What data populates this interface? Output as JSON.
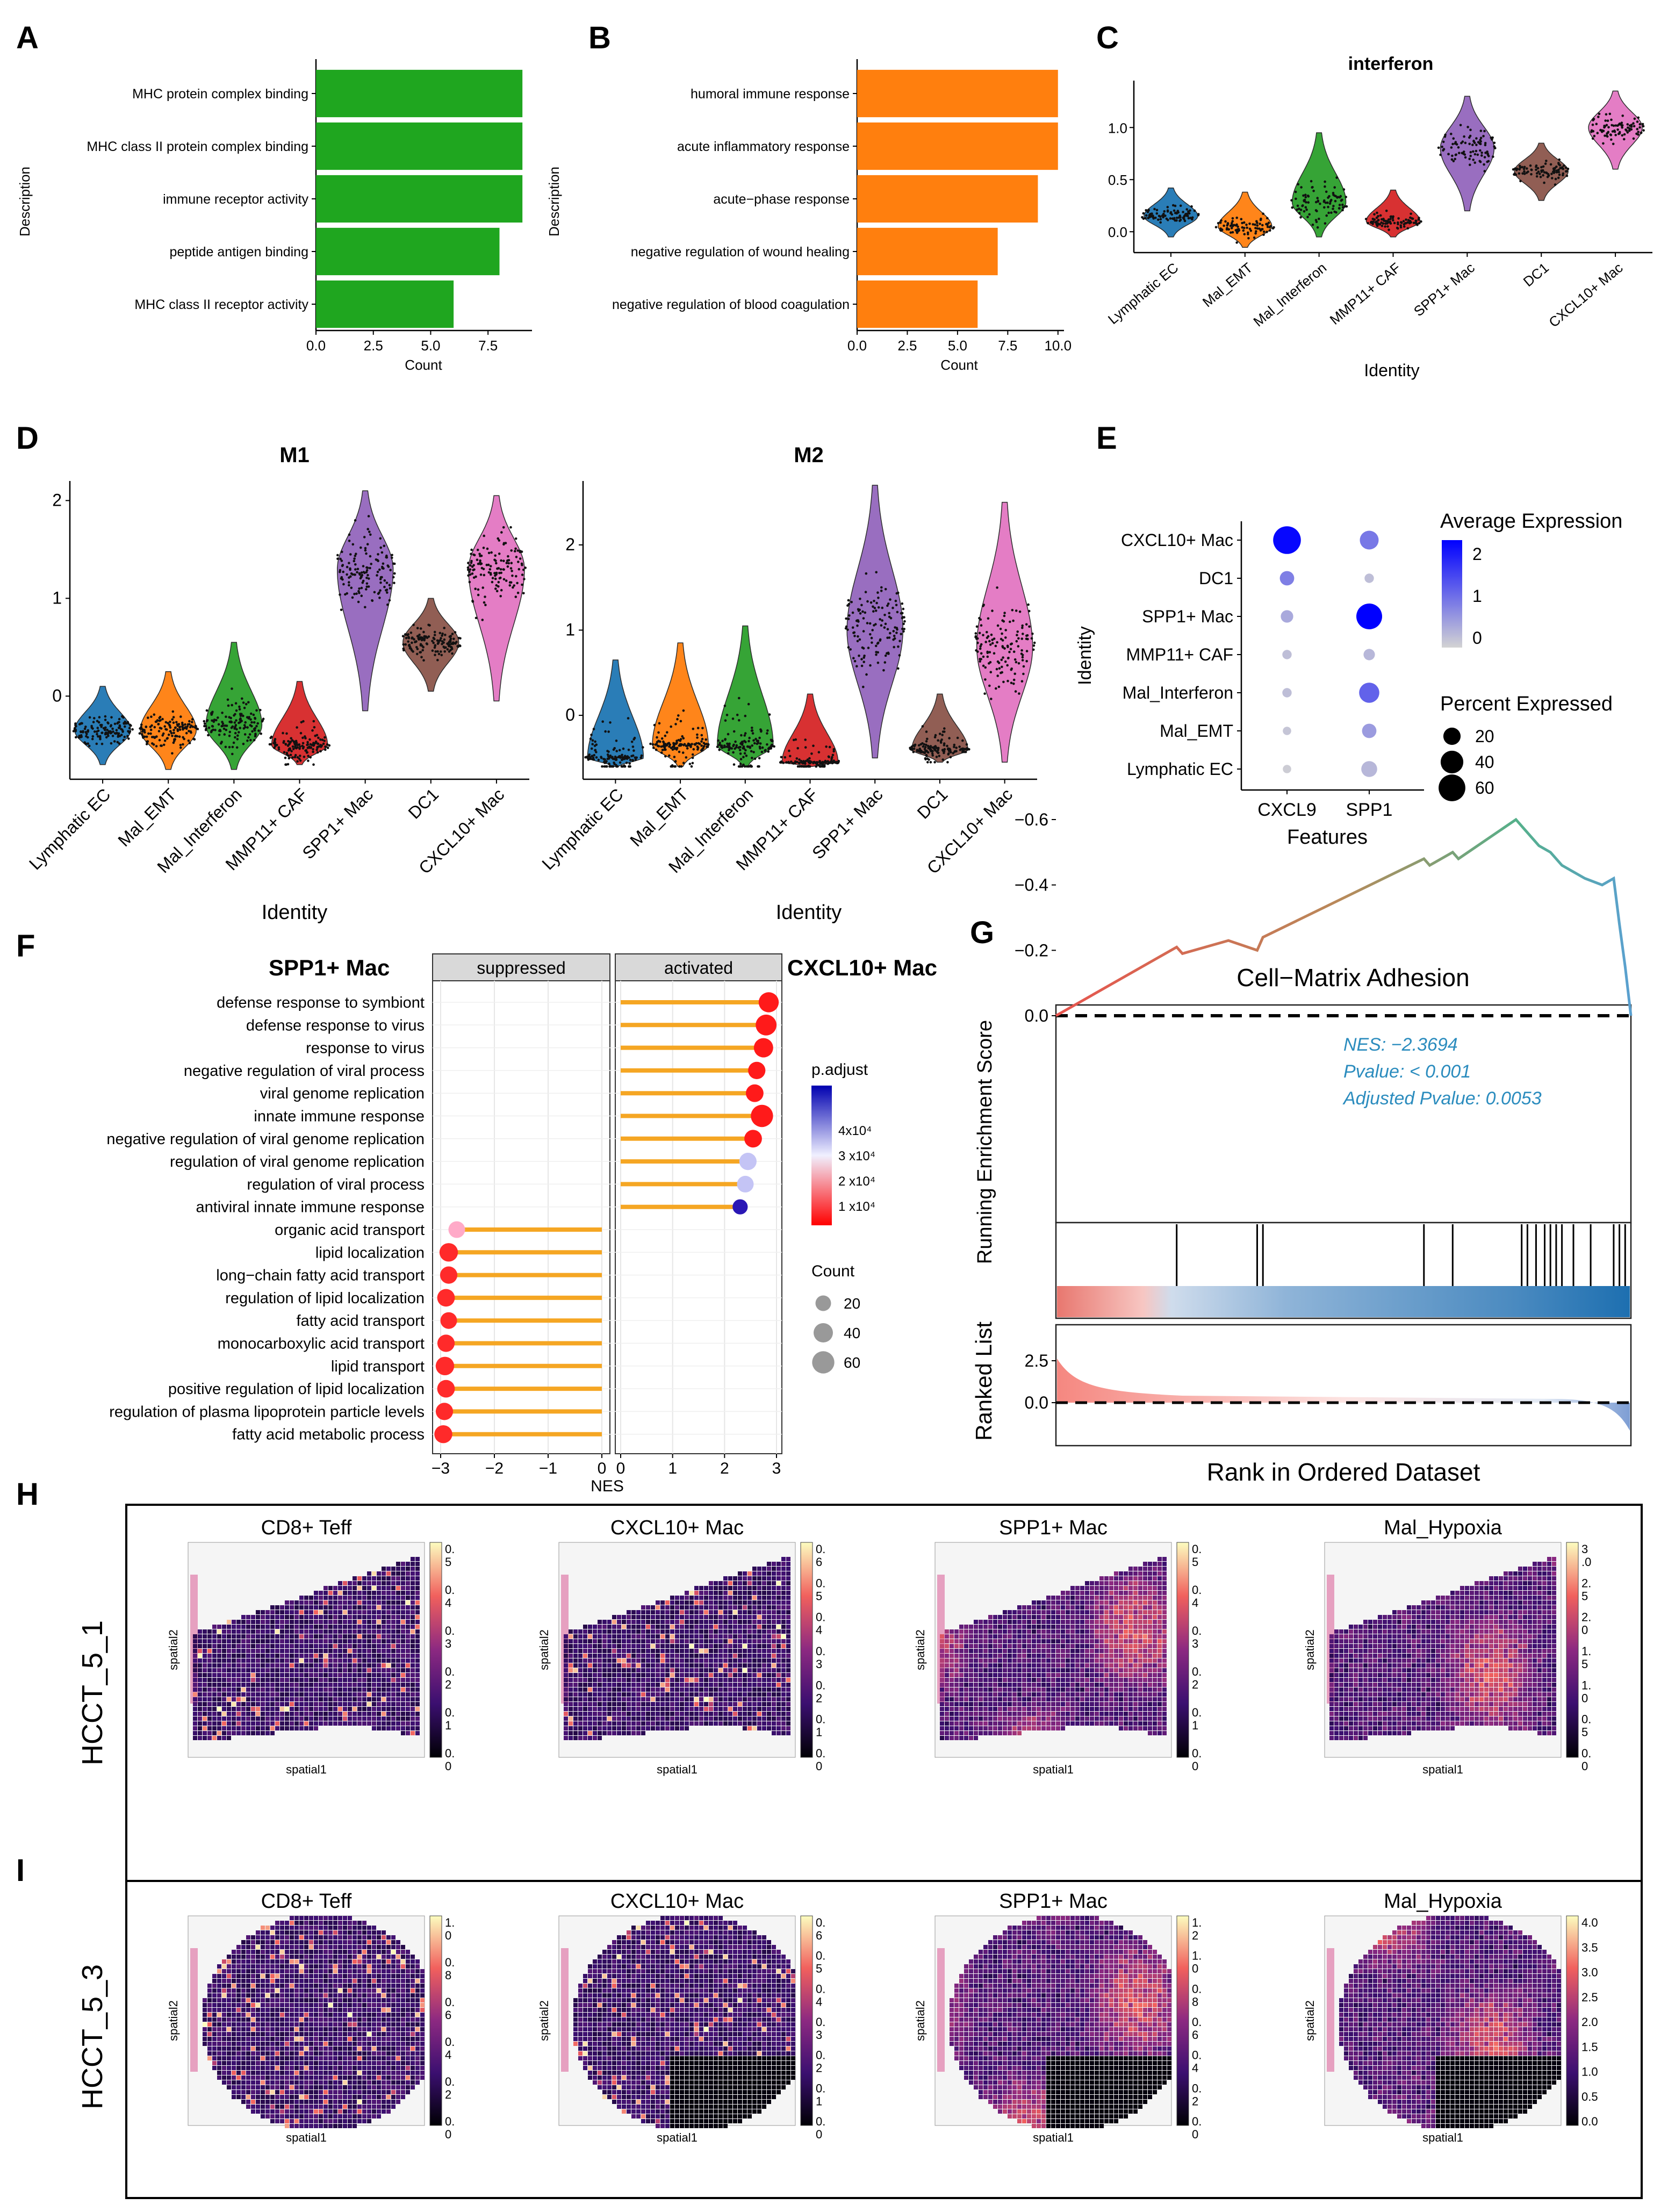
{
  "colors": {
    "green": "#1fa61f",
    "orange": "#ff7f0e",
    "yellow_bar": "#f5a623",
    "cell_colors": [
      "#1f77b4",
      "#ff7f0e",
      "#2ca02c",
      "#d62728",
      "#9467bd",
      "#8c564b",
      "#e377c2"
    ]
  },
  "panels": {
    "A": "A",
    "B": "B",
    "C": "C",
    "D": "D",
    "E": "E",
    "F": "F",
    "G": "G",
    "H": "H",
    "I": "I"
  },
  "chart_data": [
    {
      "id": "A",
      "type": "bar",
      "categories": [
        "MHC protein complex binding",
        "MHC class II protein complex binding",
        "immune receptor activity",
        "peptide antigen binding",
        "MHC class II receptor activity"
      ],
      "values": [
        9,
        9,
        9,
        8,
        6
      ],
      "xlabel": "Count",
      "ylabel": "Description",
      "ticks": [
        0,
        2.5,
        5,
        7.5
      ],
      "tick_labels": [
        "0.0",
        "2.5",
        "5.0",
        "7.5"
      ],
      "xlim": [
        0,
        9.3
      ]
    },
    {
      "id": "B",
      "type": "bar",
      "categories": [
        "humoral immune response",
        "acute inflammatory response",
        "acute−phase response",
        "negative regulation of wound healing",
        "negative regulation of blood coagulation"
      ],
      "values": [
        10,
        10,
        9,
        7,
        6
      ],
      "xlabel": "Count",
      "ylabel": "Description",
      "ticks": [
        0,
        2.5,
        5,
        7.5,
        10
      ],
      "tick_labels": [
        "0.0",
        "2.5",
        "5.0",
        "7.5",
        "10.0"
      ],
      "xlim": [
        0,
        10.3
      ]
    },
    {
      "id": "C",
      "type": "violin",
      "title": "interferon",
      "categories": [
        "Lymphatic EC",
        "Mal_EMT",
        "Mal_Interferon",
        "MMP11+ CAF",
        "SPP1+ Mac",
        "DC1",
        "CXCL10+ Mac"
      ],
      "medians": [
        0.15,
        0.05,
        0.28,
        0.1,
        0.8,
        0.58,
        1.0
      ],
      "mins": [
        -0.05,
        -0.15,
        -0.05,
        -0.05,
        0.2,
        0.3,
        0.6
      ],
      "maxs": [
        0.42,
        0.38,
        0.95,
        0.4,
        1.3,
        0.85,
        1.35
      ],
      "xlabel": "Identity",
      "ylim": [
        -0.2,
        1.45
      ],
      "ticks": [
        0,
        0.5,
        1
      ],
      "tick_labels": [
        "0.0",
        "0.5",
        "1.0"
      ]
    },
    {
      "id": "D1",
      "type": "violin",
      "title": "M1",
      "categories": [
        "Lymphatic EC",
        "Mal_EMT",
        "Mal_Interferon",
        "MMP11+ CAF",
        "SPP1+ Mac",
        "DC1",
        "CXCL10+ Mac"
      ],
      "medians": [
        -0.35,
        -0.35,
        -0.3,
        -0.5,
        1.3,
        0.55,
        1.3
      ],
      "mins": [
        -0.7,
        -0.75,
        -0.75,
        -0.7,
        -0.15,
        0.05,
        -0.05
      ],
      "maxs": [
        0.1,
        0.25,
        0.55,
        0.15,
        2.1,
        1.0,
        2.05
      ],
      "xlabel": "Identity",
      "ylim": [
        -0.85,
        2.2
      ],
      "ticks": [
        0,
        1,
        2
      ],
      "tick_labels": [
        "0",
        "1",
        "2"
      ]
    },
    {
      "id": "D2",
      "type": "violin",
      "title": "M2",
      "categories": [
        "Lymphatic EC",
        "Mal_EMT",
        "Mal_Interferon",
        "MMP11+ CAF",
        "SPP1+ Mac",
        "DC1",
        "CXCL10+ Mac"
      ],
      "medians": [
        -0.5,
        -0.35,
        -0.35,
        -0.55,
        1.0,
        -0.4,
        0.8
      ],
      "mins": [
        -0.6,
        -0.6,
        -0.6,
        -0.6,
        -0.5,
        -0.55,
        -0.55
      ],
      "maxs": [
        0.65,
        0.85,
        1.05,
        0.25,
        2.7,
        0.25,
        2.5
      ],
      "xlabel": "Identity",
      "ylim": [
        -0.75,
        2.75
      ],
      "ticks": [
        0,
        1,
        2
      ],
      "tick_labels": [
        "0",
        "1",
        "2"
      ]
    },
    {
      "id": "E",
      "type": "dotplot",
      "features": [
        "CXCL9",
        "SPP1"
      ],
      "identities": [
        "CXCL10+ Mac",
        "DC1",
        "SPP1+ Mac",
        "MMP11+ CAF",
        "Mal_Interferon",
        "Mal_EMT",
        "Lymphatic EC"
      ],
      "avg_exp": [
        [
          2.2,
          0.6
        ],
        [
          0.5,
          -0.4
        ],
        [
          -0.1,
          2.3
        ],
        [
          -0.4,
          -0.3
        ],
        [
          -0.4,
          0.9
        ],
        [
          -0.5,
          0.1
        ],
        [
          -0.6,
          -0.3
        ]
      ],
      "pct_exp": [
        [
          65,
          25
        ],
        [
          12,
          3
        ],
        [
          8,
          55
        ],
        [
          3,
          6
        ],
        [
          3,
          30
        ],
        [
          2,
          12
        ],
        [
          2,
          16
        ]
      ],
      "xlabel": "Features",
      "ylabel": "Identity",
      "legend_color_title": "Average Expression",
      "legend_color_ticks": [
        "2",
        "1",
        "0"
      ],
      "legend_size_title": "Percent Expressed",
      "legend_size_ticks": [
        "20",
        "40",
        "60"
      ]
    },
    {
      "id": "F",
      "type": "lollipop",
      "left_title": "SPP1+ Mac",
      "right_title": "CXCL10+ Mac",
      "facet_labels": [
        "suppressed",
        "activated"
      ],
      "terms": [
        "defense response to symbiont",
        "defense response to virus",
        "response to virus",
        "negative regulation of viral process",
        "viral genome replication",
        "innate immune response",
        "negative regulation of viral genome replication",
        "regulation of viral genome replication",
        "regulation of viral process",
        "antiviral innate immune response",
        "organic acid transport",
        "lipid localization",
        "long−chain fatty acid transport",
        "regulation of lipid localization",
        "fatty acid transport",
        "monocarboxylic acid transport",
        "lipid transport",
        "positive regulation of lipid localization",
        "regulation of plasma lipoprotein particle levels",
        "fatty acid metabolic process"
      ],
      "nes": [
        2.85,
        2.8,
        2.75,
        2.62,
        2.58,
        2.72,
        2.55,
        2.45,
        2.4,
        2.3,
        -2.7,
        -2.85,
        -2.85,
        -2.9,
        -2.85,
        -2.9,
        -2.92,
        -2.9,
        -2.93,
        -2.95
      ],
      "count": [
        45,
        50,
        40,
        28,
        30,
        60,
        30,
        28,
        25,
        18,
        25,
        35,
        28,
        30,
        25,
        28,
        35,
        30,
        28,
        32
      ],
      "padj_color": [
        "#ff1a1a",
        "#ff1a1a",
        "#ff1a1a",
        "#ff1a1a",
        "#ff1a1a",
        "#ff1a1a",
        "#ff1a1a",
        "#c4c4f5",
        "#c4c4f5",
        "#2a17b5",
        "#ffaac8",
        "#ff2a2a",
        "#ff2a2a",
        "#ff2a2a",
        "#ff2a2a",
        "#ff2a2a",
        "#ff2a2a",
        "#ff2a2a",
        "#ff2a2a",
        "#ff2a2a"
      ],
      "xlabel": "NES",
      "left_ticks": [
        "−3",
        "−2",
        "−1",
        "0"
      ],
      "right_ticks": [
        "0",
        "1",
        "2",
        "3"
      ],
      "legend_padj_title": "p.adjust",
      "legend_padj_ticks": [
        "4x10⁴",
        "3 x10⁴",
        "2 x10⁴",
        "1 x10⁴"
      ],
      "legend_count_title": "Count",
      "legend_count_ticks": [
        "20",
        "40",
        "60"
      ]
    },
    {
      "id": "G",
      "type": "gsea",
      "title": "Cell−Matrix Adhesion",
      "nes_text": "NES: −2.3694",
      "pvalue_text": "Pvalue: < 0.001",
      "adj_pvalue_text": "Adjusted Pvalue: 0.0053",
      "ylabel_top": "Running Enrichment Score",
      "ylabel_bottom": "Ranked List",
      "xlabel": "Rank in Ordered Dataset",
      "es_ticks": [
        "0.0",
        "−0.2",
        "−0.4",
        "−0.6"
      ],
      "rank_ticks": [
        "2.5",
        "0.0"
      ],
      "es_curve": [
        [
          0,
          0
        ],
        [
          0.21,
          -0.21
        ],
        [
          0.22,
          -0.19
        ],
        [
          0.3,
          -0.23
        ],
        [
          0.35,
          -0.2
        ],
        [
          0.36,
          -0.24
        ],
        [
          0.64,
          -0.48
        ],
        [
          0.65,
          -0.46
        ],
        [
          0.69,
          -0.5
        ],
        [
          0.7,
          -0.48
        ],
        [
          0.8,
          -0.6
        ],
        [
          0.82,
          -0.56
        ],
        [
          0.84,
          -0.52
        ],
        [
          0.86,
          -0.5
        ],
        [
          0.88,
          -0.46
        ],
        [
          0.9,
          -0.44
        ],
        [
          0.92,
          -0.42
        ],
        [
          0.95,
          -0.4
        ],
        [
          0.97,
          -0.42
        ],
        [
          0.98,
          -0.28
        ],
        [
          0.99,
          -0.15
        ],
        [
          1,
          0
        ]
      ],
      "hits": [
        0.21,
        0.35,
        0.36,
        0.64,
        0.69,
        0.81,
        0.82,
        0.835,
        0.85,
        0.86,
        0.87,
        0.88,
        0.9,
        0.93,
        0.97,
        0.98,
        0.99
      ]
    },
    {
      "id": "H",
      "type": "spatial",
      "sample": "HCCT_5_1",
      "titles": [
        "CD8+ Teff",
        "CXCL10+ Mac",
        "SPP1+ Mac",
        "Mal_Hypoxia"
      ],
      "xlabel": "spatial1",
      "ylabel": "spatial2",
      "colorbar_ticks": [
        [
          "0.\n5",
          "0.\n4",
          "0.\n3",
          "0.\n2",
          "0.\n1",
          "0.\n0"
        ],
        [
          "0.\n6",
          "0.\n5",
          "0.\n4",
          "0.\n3",
          "0.\n2",
          "0.\n1",
          "0.\n0"
        ],
        [
          "0.\n5",
          "0.\n4",
          "0.\n3",
          "0.\n2",
          "0.\n1",
          "0.\n0"
        ],
        [
          "3\n.0",
          "2.\n5",
          "2.\n0",
          "1.\n5",
          "1.\n0",
          "0.\n5",
          "0.\n0"
        ]
      ]
    },
    {
      "id": "I",
      "type": "spatial",
      "sample": "HCCT_5_3",
      "titles": [
        "CD8+ Teff",
        "CXCL10+ Mac",
        "SPP1+ Mac",
        "Mal_Hypoxia"
      ],
      "xlabel": "spatial1",
      "ylabel": "spatial2",
      "colorbar_ticks": [
        [
          "1.\n0",
          "0.\n8",
          "0.\n6",
          "0.\n4",
          "0.\n2",
          "0.\n0"
        ],
        [
          "0.\n6",
          "0.\n5",
          "0.\n4",
          "0.\n3",
          "0.\n2",
          "0.\n1",
          "0.\n0"
        ],
        [
          "1.\n2",
          "1.\n0",
          "0.\n8",
          "0.\n6",
          "0.\n4",
          "0.\n2",
          "0.\n0"
        ],
        [
          "4.0",
          "3.5",
          "3.0",
          "2.5",
          "2.0",
          "1.5",
          "1.0",
          "0.5",
          "0.0"
        ]
      ]
    }
  ]
}
